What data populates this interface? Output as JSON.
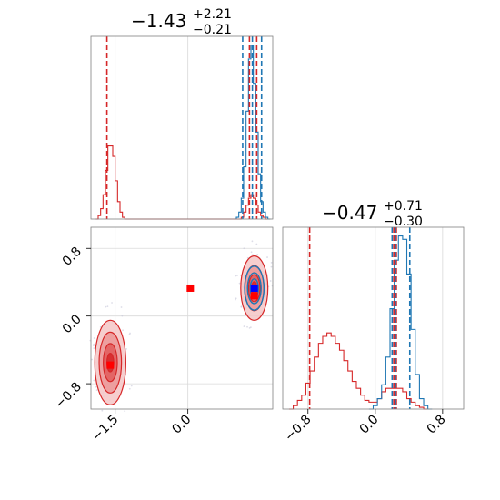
{
  "chart_data": [
    {
      "type": "histogram",
      "panel": "marginal-x",
      "title": {
        "main": "−1.43",
        "sup": "+2.21",
        "sub": "−0.21"
      },
      "xlim": [
        -2.0,
        1.75
      ],
      "grid": true,
      "series": [
        {
          "name": "",
          "color": "#d62728",
          "x": [
            -1.875,
            -1.825,
            -1.775,
            -1.725,
            -1.675,
            -1.625,
            -1.575,
            -1.525,
            -1.475,
            -1.425,
            -1.375,
            -1.325,
            -1.275,
            -1.225,
            1.075,
            1.125,
            1.175,
            1.225,
            1.275,
            1.325,
            1.375,
            1.425,
            1.475,
            1.525,
            1.575,
            1.625
          ],
          "y": [
            0.0,
            0.02,
            0.06,
            0.14,
            0.28,
            0.42,
            0.42,
            0.36,
            0.22,
            0.1,
            0.04,
            0.01,
            0.0,
            0.0,
            0.0,
            0.01,
            0.04,
            0.08,
            0.12,
            0.14,
            0.12,
            0.08,
            0.04,
            0.02,
            0.01,
            0.0
          ]
        },
        {
          "name": "",
          "color": "#1f77b4",
          "x": [
            1.025,
            1.075,
            1.125,
            1.175,
            1.225,
            1.275,
            1.325,
            1.375,
            1.425,
            1.475,
            1.525,
            1.575,
            1.625,
            1.675
          ],
          "y": [
            0.01,
            0.04,
            0.12,
            0.3,
            0.62,
            0.92,
            1.0,
            0.78,
            0.5,
            0.26,
            0.1,
            0.04,
            0.01,
            0.0
          ]
        }
      ],
      "vlines": [
        {
          "x": -1.67,
          "color": "#d62728"
        },
        {
          "x": 1.27,
          "color": "#d62728"
        },
        {
          "x": 1.42,
          "color": "#d62728"
        },
        {
          "x": 1.13,
          "color": "#1f77b4"
        },
        {
          "x": 1.33,
          "color": "#1f77b4"
        },
        {
          "x": 1.52,
          "color": "#1f77b4"
        }
      ]
    },
    {
      "type": "contour",
      "panel": "joint",
      "xlim": [
        -2.0,
        1.75
      ],
      "ylim": [
        -1.1,
        1.05
      ],
      "yticks": [
        -0.8,
        0.0,
        0.8
      ],
      "ytick_labels": [
        "−0.8",
        "0.0",
        "0.8"
      ],
      "xticks": [
        -1.5,
        0.0
      ],
      "xtick_labels": [
        "−1.5",
        "0.0"
      ],
      "grid": true,
      "clusters": [
        {
          "center": [
            -1.6,
            -0.55
          ],
          "sx": 0.32,
          "sy": 0.5,
          "color": "#d62728",
          "levels": [
            1.0,
            0.72,
            0.45,
            0.22
          ]
        },
        {
          "center": [
            1.37,
            0.33
          ],
          "sx": 0.28,
          "sy": 0.38,
          "color": "#d62728",
          "levels": [
            1.0,
            0.7,
            0.42,
            0.2
          ]
        },
        {
          "center": [
            1.37,
            0.33
          ],
          "sx": 0.2,
          "sy": 0.26,
          "color": "#1f77b4",
          "levels": [
            1.0,
            0.7,
            0.42
          ]
        }
      ],
      "markers": [
        {
          "x": -1.6,
          "y": -0.58,
          "color": "#ff0000"
        },
        {
          "x": 0.05,
          "y": 0.33,
          "color": "#ff0000"
        },
        {
          "x": 1.37,
          "y": 0.24,
          "color": "#ff0000"
        },
        {
          "x": 1.37,
          "y": 0.33,
          "color": "#0000ff"
        }
      ]
    },
    {
      "type": "histogram",
      "panel": "marginal-y",
      "title": {
        "main": "−0.47",
        "sup": "+0.71",
        "sub": "−0.30"
      },
      "xlim": [
        -1.1,
        1.05
      ],
      "xticks": [
        -0.8,
        0.0,
        0.8
      ],
      "xtick_labels": [
        "−0.8",
        "0.0",
        "0.8"
      ],
      "grid": true,
      "series": [
        {
          "name": "",
          "color": "#d62728",
          "x": [
            -1.0,
            -0.95,
            -0.9,
            -0.85,
            -0.8,
            -0.75,
            -0.7,
            -0.65,
            -0.6,
            -0.55,
            -0.5,
            -0.45,
            -0.4,
            -0.35,
            -0.3,
            -0.25,
            -0.2,
            -0.15,
            -0.1,
            -0.05,
            0.0,
            0.05,
            0.1,
            0.15,
            0.2,
            0.25,
            0.3,
            0.35,
            0.4,
            0.45,
            0.5,
            0.55,
            0.6
          ],
          "y": [
            0.0,
            0.02,
            0.05,
            0.08,
            0.15,
            0.22,
            0.3,
            0.38,
            0.42,
            0.44,
            0.42,
            0.38,
            0.34,
            0.28,
            0.22,
            0.16,
            0.12,
            0.08,
            0.05,
            0.04,
            0.04,
            0.06,
            0.1,
            0.12,
            0.12,
            0.12,
            0.12,
            0.1,
            0.06,
            0.04,
            0.02,
            0.01,
            0.0
          ]
        },
        {
          "name": "",
          "color": "#1f77b4",
          "x": [
            -0.05,
            0.0,
            0.05,
            0.1,
            0.15,
            0.2,
            0.25,
            0.3,
            0.35,
            0.4,
            0.45,
            0.5,
            0.55,
            0.6,
            0.65
          ],
          "y": [
            0.0,
            0.02,
            0.06,
            0.14,
            0.3,
            0.58,
            0.86,
            1.0,
            0.98,
            0.78,
            0.46,
            0.2,
            0.06,
            0.02,
            0.0
          ]
        }
      ],
      "vlines": [
        {
          "x": -0.78,
          "color": "#d62728"
        },
        {
          "x": 0.22,
          "color": "#d62728"
        },
        {
          "x": 0.25,
          "color": "#d62728"
        },
        {
          "x": 0.2,
          "color": "#1f77b4"
        },
        {
          "x": 0.24,
          "color": "#1f77b4"
        },
        {
          "x": 0.41,
          "color": "#1f77b4"
        }
      ]
    }
  ]
}
